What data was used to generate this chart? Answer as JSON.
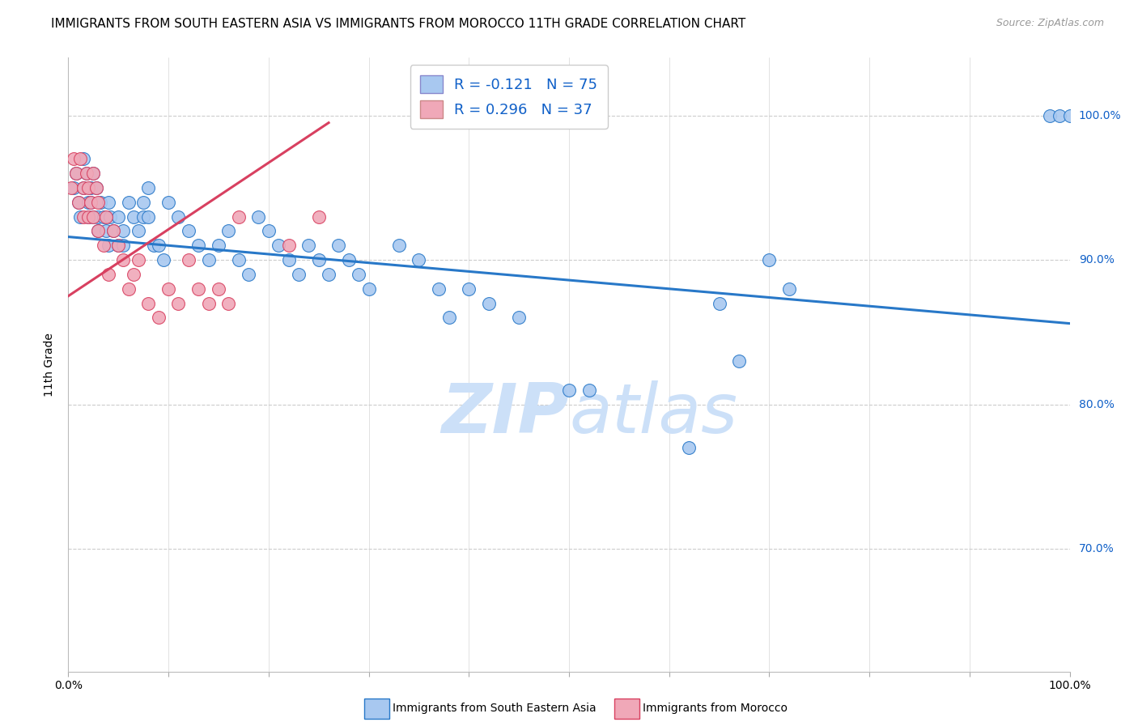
{
  "title": "IMMIGRANTS FROM SOUTH EASTERN ASIA VS IMMIGRANTS FROM MOROCCO 11TH GRADE CORRELATION CHART",
  "source": "Source: ZipAtlas.com",
  "ylabel": "11th Grade",
  "y_tick_labels": [
    "100.0%",
    "90.0%",
    "80.0%",
    "70.0%"
  ],
  "y_tick_values": [
    1.0,
    0.9,
    0.8,
    0.7
  ],
  "xlim": [
    0.0,
    1.0
  ],
  "ylim": [
    0.615,
    1.04
  ],
  "legend_r_blue": "R = -0.121",
  "legend_n_blue": "N = 75",
  "legend_r_pink": "R = 0.296",
  "legend_n_pink": "N = 37",
  "legend_label_blue": "Immigrants from South Eastern Asia",
  "legend_label_pink": "Immigrants from Morocco",
  "color_blue": "#a8c8f0",
  "color_pink": "#f0a8b8",
  "color_blue_line": "#2878c8",
  "color_pink_line": "#d84060",
  "color_blue_text": "#1060c8",
  "color_watermark": "#cce0f8",
  "blue_trend_x": [
    0.0,
    1.0
  ],
  "blue_trend_y": [
    0.916,
    0.856
  ],
  "pink_trend_x": [
    0.0,
    0.26
  ],
  "pink_trend_y": [
    0.875,
    0.995
  ],
  "blue_x": [
    0.005,
    0.008,
    0.01,
    0.012,
    0.015,
    0.015,
    0.018,
    0.02,
    0.02,
    0.022,
    0.022,
    0.025,
    0.025,
    0.028,
    0.03,
    0.03,
    0.032,
    0.035,
    0.038,
    0.04,
    0.04,
    0.042,
    0.045,
    0.05,
    0.05,
    0.055,
    0.055,
    0.06,
    0.065,
    0.07,
    0.075,
    0.075,
    0.08,
    0.08,
    0.085,
    0.09,
    0.095,
    0.1,
    0.11,
    0.12,
    0.13,
    0.14,
    0.15,
    0.16,
    0.17,
    0.18,
    0.19,
    0.2,
    0.21,
    0.22,
    0.23,
    0.24,
    0.25,
    0.26,
    0.27,
    0.28,
    0.29,
    0.3,
    0.33,
    0.35,
    0.37,
    0.38,
    0.4,
    0.42,
    0.45,
    0.5,
    0.52,
    0.62,
    0.65,
    0.67,
    0.7,
    0.72,
    0.98,
    0.99,
    1.0
  ],
  "blue_y": [
    0.95,
    0.96,
    0.94,
    0.93,
    0.97,
    0.95,
    0.96,
    0.94,
    0.93,
    0.95,
    0.94,
    0.96,
    0.93,
    0.95,
    0.93,
    0.92,
    0.94,
    0.93,
    0.92,
    0.94,
    0.91,
    0.93,
    0.92,
    0.93,
    0.91,
    0.92,
    0.91,
    0.94,
    0.93,
    0.92,
    0.94,
    0.93,
    0.95,
    0.93,
    0.91,
    0.91,
    0.9,
    0.94,
    0.93,
    0.92,
    0.91,
    0.9,
    0.91,
    0.92,
    0.9,
    0.89,
    0.93,
    0.92,
    0.91,
    0.9,
    0.89,
    0.91,
    0.9,
    0.89,
    0.91,
    0.9,
    0.89,
    0.88,
    0.91,
    0.9,
    0.88,
    0.86,
    0.88,
    0.87,
    0.86,
    0.81,
    0.81,
    0.77,
    0.87,
    0.83,
    0.9,
    0.88,
    1.0,
    1.0,
    1.0
  ],
  "pink_x": [
    0.003,
    0.005,
    0.008,
    0.01,
    0.012,
    0.015,
    0.015,
    0.018,
    0.02,
    0.02,
    0.022,
    0.025,
    0.025,
    0.028,
    0.03,
    0.03,
    0.035,
    0.038,
    0.04,
    0.045,
    0.05,
    0.055,
    0.06,
    0.065,
    0.07,
    0.08,
    0.09,
    0.1,
    0.11,
    0.12,
    0.13,
    0.14,
    0.15,
    0.16,
    0.17,
    0.22,
    0.25
  ],
  "pink_y": [
    0.95,
    0.97,
    0.96,
    0.94,
    0.97,
    0.95,
    0.93,
    0.96,
    0.93,
    0.95,
    0.94,
    0.96,
    0.93,
    0.95,
    0.94,
    0.92,
    0.91,
    0.93,
    0.89,
    0.92,
    0.91,
    0.9,
    0.88,
    0.89,
    0.9,
    0.87,
    0.86,
    0.88,
    0.87,
    0.9,
    0.88,
    0.87,
    0.88,
    0.87,
    0.93,
    0.91,
    0.93
  ],
  "grid_color": "#cccccc",
  "background_color": "#ffffff",
  "title_fontsize": 11,
  "axis_label_fontsize": 10,
  "tick_fontsize": 10
}
